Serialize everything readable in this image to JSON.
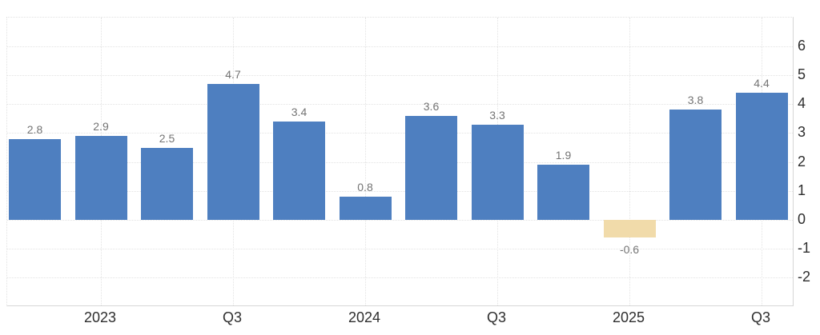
{
  "chart_data": {
    "type": "bar",
    "values": [
      2.8,
      2.9,
      2.5,
      4.7,
      3.4,
      0.8,
      3.6,
      3.3,
      1.9,
      -0.6,
      3.8,
      4.4
    ],
    "bar_labels": [
      "2.8",
      "2.9",
      "2.5",
      "4.7",
      "3.4",
      "0.8",
      "3.6",
      "3.3",
      "1.9",
      "-0.6",
      "3.8",
      "4.4"
    ],
    "x_tick_labels": [
      {
        "label": "2023",
        "bar_index": 1
      },
      {
        "label": "Q3",
        "bar_index": 3
      },
      {
        "label": "2024",
        "bar_index": 5
      },
      {
        "label": "Q3",
        "bar_index": 7
      },
      {
        "label": "2025",
        "bar_index": 9
      },
      {
        "label": "Q3",
        "bar_index": 11
      }
    ],
    "y_ticks": [
      6,
      5,
      4,
      3,
      2,
      1,
      0,
      -1,
      -2
    ],
    "y_axis_unit": "%",
    "ylim": [
      -3,
      7
    ],
    "grid": true,
    "legend": "none",
    "colors": {
      "positive_bar": "#4e7fc0",
      "negative_bar": "#f1dbaa",
      "gridline": "#e3e3e3",
      "axis_line": "#d6d6d6",
      "bar_label": "#747474",
      "tick_label": "#2e2e2e"
    }
  }
}
